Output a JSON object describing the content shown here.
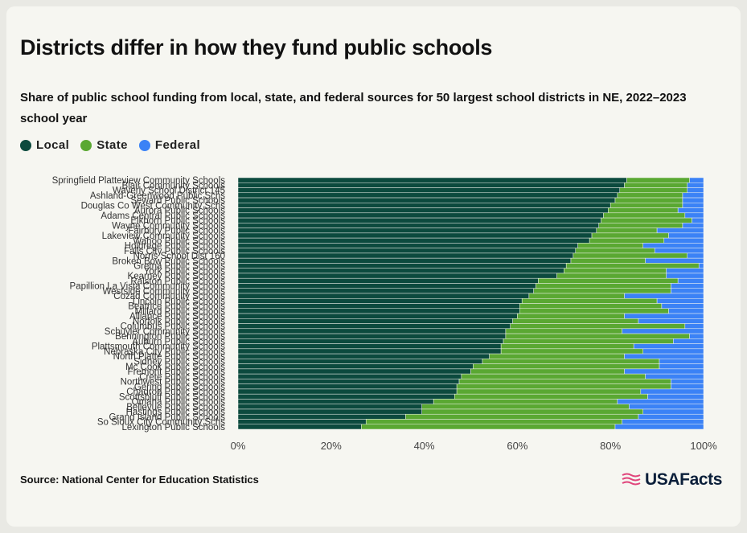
{
  "header": {
    "title": "Districts differ in how they fund public schools",
    "subtitle": "Share of public school funding from local, state, and federal sources for 50 largest school districts in NE, 2022–2023 school year"
  },
  "legend": [
    {
      "label": "Local",
      "color": "#0c4a3e"
    },
    {
      "label": "State",
      "color": "#5aa832"
    },
    {
      "label": "Federal",
      "color": "#3b82f6"
    }
  ],
  "footer": {
    "source": "Source: National Center for Education Statistics",
    "brand": "USAFacts"
  },
  "chart_data": {
    "type": "bar",
    "orientation": "horizontal",
    "stacked": true,
    "normalized": true,
    "xlim": [
      0,
      100
    ],
    "x_ticks": [
      "0%",
      "20%",
      "40%",
      "60%",
      "80%",
      "100%"
    ],
    "grid": false,
    "legend_position": "top-left",
    "categories": [
      "Springfield Platteview Community Schools",
      "Blair Community Schools",
      "Waverly School District 145",
      "Ashland-Greenwood Public Schs",
      "Seward Public Schools",
      "Douglas Co West Community Schs",
      "Aurora Public Schools",
      "Adams Central Public Schools",
      "Elkhorn Public Schools",
      "Wayne Community Schools",
      "Fairbury Public Schools",
      "Lakeview Community Schools",
      "Wahoo Public Schools",
      "Holdrege Public Schools",
      "Falls City Public Schools",
      "Norris School Dist 160",
      "Broken Bow Public Schools",
      "Gretna Public Schools",
      "York Public Schools",
      "Kearney Public Schools",
      "Ralston Public Schools",
      "Papillion La Vista Community Schools",
      "Westside Community Schools",
      "Cozad Community Schools",
      "Lincoln Public Schools",
      "Beatrice Public Schools",
      "Millard Public Schools",
      "Alliance Public Schools",
      "Norfolk Public Schools",
      "Columbus Public Schools",
      "Schuyler Community Schools",
      "Bennington Public Schools",
      "Auburn Public Schools",
      "Plattsmouth Community Schools",
      "Nebraska City Public Schools",
      "North Platte Public Schools",
      "Sidney Public Schools",
      "Mc Cook Public Schools",
      "Fremont Public Schools",
      "Crete Public Schools",
      "Northwest Public Schools",
      "Gering Public Schools",
      "Chadron Public Schools",
      "Scottsbluff Public Schools",
      "Omaha Public Schools",
      "Bellevue Public Schools",
      "Hastings Public Schools",
      "Grand Island Public Schools",
      "So Sioux City Community Schs",
      "Lexington Public Schools"
    ],
    "series": [
      {
        "name": "Local",
        "values": [
          83.5,
          83,
          82,
          81.5,
          81,
          80,
          79.5,
          78.5,
          78,
          77.5,
          77,
          76,
          75.5,
          73,
          72.5,
          72,
          71.5,
          70.5,
          70,
          68.5,
          64.5,
          64,
          63.5,
          62.5,
          61,
          60.5,
          60.5,
          60,
          59,
          58.5,
          57.5,
          57.5,
          57,
          56.5,
          56.5,
          54,
          52.5,
          50.5,
          50,
          48,
          47.5,
          47,
          47,
          46.5,
          42,
          39.5,
          39.5,
          36,
          27.5,
          26.5
        ]
      },
      {
        "name": "State",
        "values": [
          13.5,
          13.5,
          14.5,
          14,
          14.5,
          15.5,
          15,
          17.5,
          19.5,
          18,
          13,
          16.5,
          16,
          14,
          17,
          24.5,
          16,
          28.5,
          22,
          23.5,
          30,
          29,
          29.5,
          20.5,
          29,
          30.5,
          32,
          23,
          27,
          37.5,
          25,
          39.5,
          36.5,
          28.5,
          30.5,
          29,
          38,
          40,
          33,
          39.5,
          45.5,
          46,
          39.5,
          41.5,
          39.5,
          44.5,
          47.5,
          50,
          55,
          54.5
        ]
      },
      {
        "name": "Federal",
        "values": [
          3,
          3.5,
          3.5,
          4.5,
          4.5,
          4.5,
          5.5,
          4,
          2.5,
          4.5,
          10,
          7.5,
          8.5,
          13,
          10.5,
          3.5,
          12.5,
          1,
          8,
          8,
          5.5,
          7,
          7,
          17,
          10,
          9,
          7.5,
          17,
          14,
          4,
          17.5,
          3,
          6.5,
          15,
          13,
          17,
          9.5,
          9.5,
          17,
          12.5,
          7,
          7,
          13.5,
          12,
          18.5,
          16,
          13,
          14,
          17.5,
          19
        ]
      }
    ]
  }
}
